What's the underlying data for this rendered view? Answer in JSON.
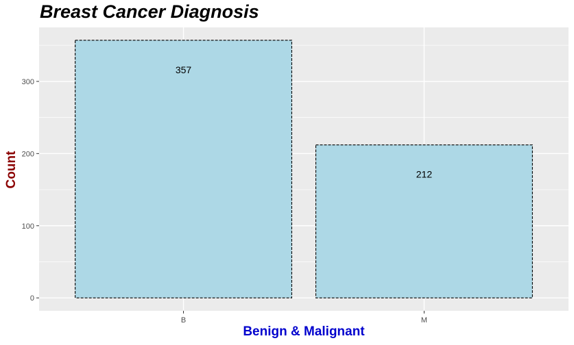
{
  "chart_data": {
    "type": "bar",
    "title": "Breast Cancer Diagnosis",
    "xlabel": "Benign & Malignant",
    "ylabel": "Count",
    "categories": [
      "B",
      "M"
    ],
    "values": [
      357,
      212
    ],
    "data_labels": [
      "357",
      "212"
    ],
    "yticks": [
      0,
      100,
      200,
      300
    ],
    "ylim": [
      -17.85,
      374.85
    ],
    "grid": true,
    "legend": "none",
    "colors": {
      "panel_background": "#ebebeb",
      "grid": "#ffffff",
      "bar_fill": "#add8e6",
      "bar_outline": "#000000",
      "title": "#000000",
      "xlabel": "#0000cd",
      "ylabel": "#8b0000"
    }
  }
}
